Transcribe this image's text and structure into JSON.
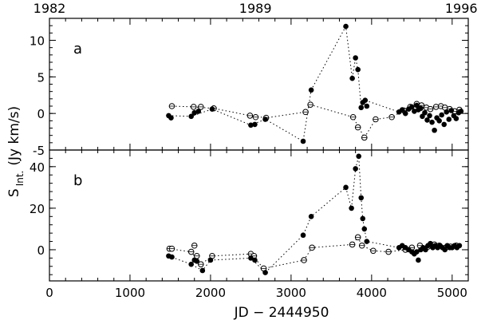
{
  "chart_data": {
    "type": "scatter",
    "x_axis": {
      "label": "JD − 2444950",
      "range": [
        0,
        5200
      ],
      "ticks": [
        0,
        1000,
        2000,
        3000,
        4000,
        5000
      ]
    },
    "top_axis": {
      "ticks": [
        {
          "label": "1982",
          "jd": 0
        },
        {
          "label": "1989",
          "jd": 2557
        },
        {
          "label": "1996",
          "jd": 5113
        }
      ]
    },
    "y_label_main": "S",
    "y_label_sub": "Int.",
    "y_label_unit": "(Jy km/s)",
    "panels": [
      {
        "label": "a",
        "ylim": [
          -5,
          13
        ],
        "yticks": [
          -5,
          0,
          5,
          10
        ],
        "filled": [
          [
            1480,
            -0.3
          ],
          [
            1510,
            -0.6
          ],
          [
            1760,
            -0.4
          ],
          [
            1800,
            0.1
          ],
          [
            1850,
            0.3
          ],
          [
            2020,
            0.6
          ],
          [
            2500,
            -1.6
          ],
          [
            2550,
            -1.5
          ],
          [
            2680,
            -0.8
          ],
          [
            3150,
            -3.8
          ],
          [
            3250,
            3.2
          ],
          [
            3680,
            11.9
          ],
          [
            3760,
            4.8
          ],
          [
            3800,
            7.6
          ],
          [
            3830,
            6.0
          ],
          [
            3870,
            0.8
          ],
          [
            3890,
            1.5
          ],
          [
            3920,
            1.8
          ],
          [
            3940,
            1.0
          ],
          [
            4340,
            0.2
          ],
          [
            4380,
            0.5
          ],
          [
            4420,
            0.0
          ],
          [
            4460,
            0.6
          ],
          [
            4500,
            0.9
          ],
          [
            4530,
            0.3
          ],
          [
            4560,
            1.1
          ],
          [
            4580,
            0.5
          ],
          [
            4610,
            0.7
          ],
          [
            4630,
            -0.4
          ],
          [
            4660,
            0.1
          ],
          [
            4690,
            -0.9
          ],
          [
            4720,
            -0.3
          ],
          [
            4750,
            -1.2
          ],
          [
            4780,
            -2.3
          ],
          [
            4810,
            -0.6
          ],
          [
            4840,
            -1.0
          ],
          [
            4870,
            -0.2
          ],
          [
            4900,
            -1.5
          ],
          [
            4930,
            0.2
          ],
          [
            4960,
            -0.8
          ],
          [
            4990,
            0.4
          ],
          [
            5020,
            -0.3
          ],
          [
            5050,
            -0.7
          ],
          [
            5080,
            0.1
          ],
          [
            5110,
            0.3
          ]
        ],
        "open": [
          [
            1520,
            1.0
          ],
          [
            1790,
            0.9
          ],
          [
            1880,
            0.9
          ],
          [
            2040,
            0.7
          ],
          [
            2490,
            -0.3
          ],
          [
            2560,
            -0.5
          ],
          [
            2690,
            -0.6
          ],
          [
            3180,
            0.2
          ],
          [
            3240,
            1.2
          ],
          [
            3770,
            -0.5
          ],
          [
            3830,
            -1.9
          ],
          [
            3910,
            -3.3
          ],
          [
            4050,
            -0.8
          ],
          [
            4250,
            -0.5
          ],
          [
            4400,
            0.4
          ],
          [
            4480,
            0.9
          ],
          [
            4560,
            1.3
          ],
          [
            4620,
            1.1
          ],
          [
            4680,
            0.8
          ],
          [
            4730,
            0.6
          ],
          [
            4800,
            0.9
          ],
          [
            4860,
            1.0
          ],
          [
            4910,
            0.8
          ],
          [
            4970,
            0.6
          ],
          [
            5030,
            0.3
          ],
          [
            5090,
            0.5
          ]
        ],
        "filled_path": [
          [
            1480,
            -0.3
          ],
          [
            1760,
            -0.4
          ],
          [
            2020,
            0.6
          ],
          [
            2500,
            -1.6
          ],
          [
            2680,
            -0.8
          ],
          [
            3150,
            -3.8
          ],
          [
            3250,
            3.2
          ],
          [
            3680,
            11.9
          ],
          [
            3760,
            4.8
          ],
          [
            3800,
            7.6
          ],
          [
            3830,
            6.0
          ],
          [
            3870,
            0.8
          ],
          [
            3920,
            1.8
          ],
          [
            4340,
            0.2
          ]
        ],
        "open_path": [
          [
            1520,
            1.0
          ],
          [
            1790,
            0.9
          ],
          [
            2040,
            0.7
          ],
          [
            2490,
            -0.3
          ],
          [
            2690,
            -0.6
          ],
          [
            3180,
            0.2
          ],
          [
            3240,
            1.2
          ],
          [
            3770,
            -0.5
          ],
          [
            3910,
            -3.3
          ],
          [
            4050,
            -0.8
          ],
          [
            4250,
            -0.5
          ],
          [
            4400,
            0.4
          ]
        ]
      },
      {
        "label": "b",
        "ylim": [
          -15,
          48
        ],
        "yticks": [
          0,
          20,
          40
        ],
        "filled": [
          [
            1480,
            -3
          ],
          [
            1520,
            -3.5
          ],
          [
            1760,
            -7
          ],
          [
            1800,
            -5
          ],
          [
            1830,
            -5.5
          ],
          [
            1900,
            -10
          ],
          [
            2000,
            -5
          ],
          [
            2500,
            -4
          ],
          [
            2550,
            -5
          ],
          [
            2680,
            -11
          ],
          [
            3150,
            7
          ],
          [
            3250,
            16
          ],
          [
            3680,
            30
          ],
          [
            3750,
            20
          ],
          [
            3800,
            39
          ],
          [
            3840,
            45
          ],
          [
            3870,
            25
          ],
          [
            3890,
            15
          ],
          [
            3910,
            10
          ],
          [
            3940,
            4
          ],
          [
            4340,
            1
          ],
          [
            4380,
            2
          ],
          [
            4420,
            1
          ],
          [
            4460,
            0
          ],
          [
            4500,
            -1
          ],
          [
            4530,
            -2
          ],
          [
            4560,
            -1
          ],
          [
            4580,
            -5
          ],
          [
            4610,
            0
          ],
          [
            4640,
            1
          ],
          [
            4670,
            0
          ],
          [
            4700,
            2
          ],
          [
            4730,
            3
          ],
          [
            4760,
            1
          ],
          [
            4790,
            2
          ],
          [
            4820,
            1
          ],
          [
            4850,
            2
          ],
          [
            4880,
            1
          ],
          [
            4910,
            0
          ],
          [
            4940,
            2
          ],
          [
            4970,
            1
          ],
          [
            5000,
            1
          ],
          [
            5030,
            2
          ],
          [
            5060,
            1
          ],
          [
            5090,
            2
          ]
        ],
        "open": [
          [
            1490,
            0.5
          ],
          [
            1520,
            0.5
          ],
          [
            1760,
            -1
          ],
          [
            1800,
            2
          ],
          [
            1830,
            -3
          ],
          [
            1880,
            -7
          ],
          [
            2020,
            -3
          ],
          [
            2500,
            -2
          ],
          [
            2540,
            -3
          ],
          [
            2660,
            -9
          ],
          [
            3160,
            -5
          ],
          [
            3260,
            1
          ],
          [
            3760,
            2.5
          ],
          [
            3830,
            6
          ],
          [
            3880,
            2
          ],
          [
            4020,
            -0.5
          ],
          [
            4210,
            -1
          ],
          [
            4420,
            0
          ],
          [
            4500,
            1
          ],
          [
            4600,
            2
          ],
          [
            4700,
            1.5
          ],
          [
            4780,
            2.5
          ],
          [
            4840,
            2
          ],
          [
            4920,
            1
          ],
          [
            4980,
            1.5
          ],
          [
            5050,
            2
          ]
        ],
        "filled_path": [
          [
            1480,
            -3
          ],
          [
            1760,
            -7
          ],
          [
            1900,
            -10
          ],
          [
            2000,
            -5
          ],
          [
            2500,
            -4
          ],
          [
            2680,
            -11
          ],
          [
            3150,
            7
          ],
          [
            3250,
            16
          ],
          [
            3680,
            30
          ],
          [
            3750,
            20
          ],
          [
            3800,
            39
          ],
          [
            3840,
            45
          ],
          [
            3870,
            25
          ],
          [
            3890,
            15
          ],
          [
            3910,
            10
          ],
          [
            3940,
            4
          ],
          [
            4340,
            1
          ]
        ],
        "open_path": [
          [
            1490,
            0.5
          ],
          [
            1760,
            -1
          ],
          [
            1880,
            -7
          ],
          [
            2020,
            -3
          ],
          [
            2500,
            -2
          ],
          [
            2660,
            -9
          ],
          [
            3160,
            -5
          ],
          [
            3260,
            1
          ],
          [
            3760,
            2.5
          ],
          [
            3830,
            6
          ],
          [
            3880,
            2
          ],
          [
            4020,
            -0.5
          ],
          [
            4210,
            -1
          ],
          [
            4420,
            0
          ]
        ]
      }
    ]
  }
}
